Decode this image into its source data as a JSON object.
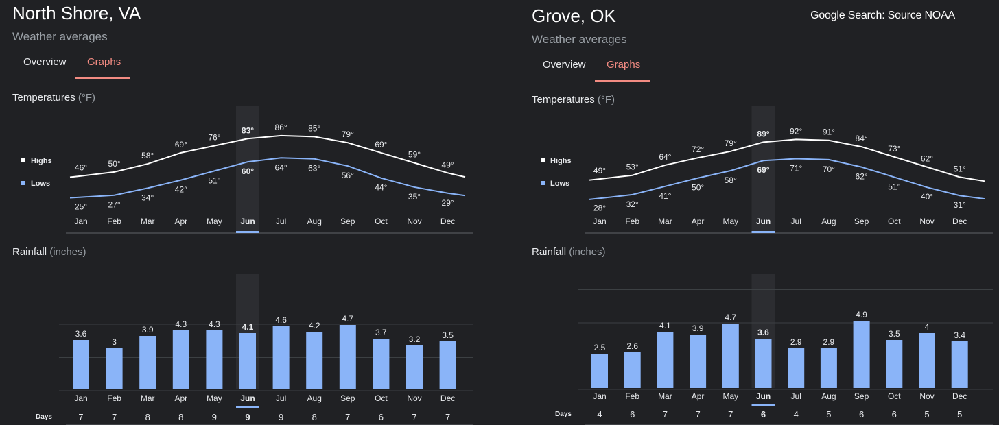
{
  "source_note": "Google Search: Source NOAA",
  "panels": [
    {
      "title": "North Shore, VA",
      "subtitle": "Weather averages",
      "tabs": [
        {
          "label": "Overview",
          "active": false
        },
        {
          "label": "Graphs",
          "active": true
        }
      ],
      "temp_label": "Temperatures",
      "temp_unit": " (°F)",
      "rain_label": "Rainfall",
      "rain_unit": " (inches)",
      "legend": {
        "highs": "Highs",
        "lows": "Lows"
      },
      "days_label": "Days",
      "selected_month": "Jun"
    },
    {
      "title": "Grove, OK",
      "subtitle": "Weather averages",
      "tabs": [
        {
          "label": "Overview",
          "active": false
        },
        {
          "label": "Graphs",
          "active": true
        }
      ],
      "temp_label": "Temperatures",
      "temp_unit": " (°F)",
      "rain_label": "Rainfall",
      "rain_unit": " (inches)",
      "legend": {
        "highs": "Highs",
        "lows": "Lows"
      },
      "days_label": "Days",
      "selected_month": "Jun"
    }
  ],
  "colors": {
    "background": "#202124",
    "highs": "#ffffff",
    "lows": "#8ab4f8",
    "bars": "#8ab4f8",
    "active_tab": "#f28b82",
    "selection": "#8ab4f8"
  },
  "chart_data": [
    {
      "type": "line",
      "location": "North Shore, VA",
      "title": "Temperatures (°F)",
      "categories": [
        "Jan",
        "Feb",
        "Mar",
        "Apr",
        "May",
        "Jun",
        "Jul",
        "Aug",
        "Sep",
        "Oct",
        "Nov",
        "Dec"
      ],
      "series": [
        {
          "name": "Highs",
          "values": [
            46,
            50,
            58,
            69,
            76,
            83,
            86,
            85,
            79,
            69,
            59,
            49
          ],
          "labels": [
            "46°",
            "50°",
            "58°",
            "69°",
            "76°",
            "83°",
            "86°",
            "85°",
            "79°",
            "69°",
            "59°",
            "49°"
          ]
        },
        {
          "name": "Lows",
          "values": [
            25,
            27,
            34,
            42,
            51,
            60,
            64,
            63,
            56,
            44,
            35,
            29
          ],
          "labels": [
            "25°",
            "27°",
            "34°",
            "42°",
            "51°",
            "60°",
            "64°",
            "63°",
            "56°",
            "44°",
            "35°",
            "29°"
          ]
        }
      ],
      "legend": "left",
      "highlight": "Jun"
    },
    {
      "type": "bar",
      "location": "North Shore, VA",
      "title": "Rainfall (inches)",
      "categories": [
        "Jan",
        "Feb",
        "Mar",
        "Apr",
        "May",
        "Jun",
        "Jul",
        "Aug",
        "Sep",
        "Oct",
        "Nov",
        "Dec"
      ],
      "values": [
        3.6,
        3,
        3.9,
        4.3,
        4.3,
        4.1,
        4.6,
        4.2,
        4.7,
        3.7,
        3.2,
        3.5
      ],
      "labels": [
        "3.6",
        "3",
        "3.9",
        "4.3",
        "4.3",
        "4.1",
        "4.6",
        "4.2",
        "4.7",
        "3.7",
        "3.2",
        "3.5"
      ],
      "days": [
        7,
        7,
        8,
        8,
        9,
        9,
        9,
        8,
        7,
        6,
        7,
        7
      ],
      "ylim": [
        0,
        12
      ],
      "grid": true,
      "highlight": "Jun"
    },
    {
      "type": "line",
      "location": "Grove, OK",
      "title": "Temperatures (°F)",
      "categories": [
        "Jan",
        "Feb",
        "Mar",
        "Apr",
        "May",
        "Jun",
        "Jul",
        "Aug",
        "Sep",
        "Oct",
        "Nov",
        "Dec"
      ],
      "series": [
        {
          "name": "Highs",
          "values": [
            49,
            53,
            64,
            72,
            79,
            89,
            92,
            91,
            84,
            73,
            62,
            51
          ],
          "labels": [
            "49°",
            "53°",
            "64°",
            "72°",
            "79°",
            "89°",
            "92°",
            "91°",
            "84°",
            "73°",
            "62°",
            "51°"
          ]
        },
        {
          "name": "Lows",
          "values": [
            28,
            32,
            41,
            50,
            58,
            69,
            71,
            70,
            62,
            51,
            40,
            31
          ],
          "labels": [
            "28°",
            "32°",
            "41°",
            "50°",
            "58°",
            "69°",
            "71°",
            "70°",
            "62°",
            "51°",
            "40°",
            "31°"
          ]
        }
      ],
      "legend": "left",
      "highlight": "Jun"
    },
    {
      "type": "bar",
      "location": "Grove, OK",
      "title": "Rainfall (inches)",
      "categories": [
        "Jan",
        "Feb",
        "Mar",
        "Apr",
        "May",
        "Jun",
        "Jul",
        "Aug",
        "Sep",
        "Oct",
        "Nov",
        "Dec"
      ],
      "values": [
        2.5,
        2.6,
        4.1,
        3.9,
        4.7,
        3.6,
        2.9,
        2.9,
        4.9,
        3.5,
        4,
        3.4
      ],
      "labels": [
        "2.5",
        "2.6",
        "4.1",
        "3.9",
        "4.7",
        "3.6",
        "2.9",
        "2.9",
        "4.9",
        "3.5",
        "4",
        "3.4"
      ],
      "days": [
        4,
        6,
        7,
        7,
        7,
        6,
        4,
        5,
        6,
        6,
        5,
        5
      ],
      "ylim": [
        0,
        12
      ],
      "grid": true,
      "highlight": "Jun"
    }
  ]
}
